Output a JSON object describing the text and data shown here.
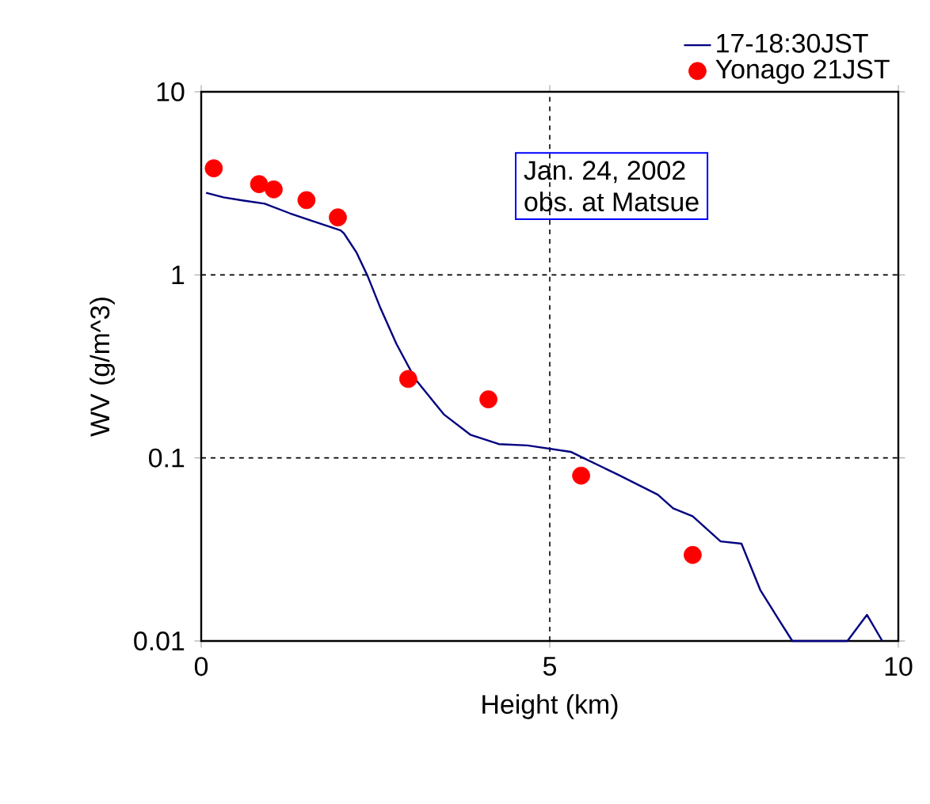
{
  "chart_data": {
    "type": "line",
    "xlabel": "Height (km)",
    "ylabel": "WV (g/m^3)",
    "xlim": [
      0,
      10
    ],
    "xticks": [
      0,
      5,
      10
    ],
    "ylim": [
      0.01,
      10
    ],
    "yticks": [
      0.01,
      0.1,
      1,
      10
    ],
    "log": "y",
    "grid": true,
    "legend": "top right",
    "annotations": [
      "Jan. 24, 2002",
      "obs. at Matsue"
    ],
    "series": [
      {
        "name": "17-18:30JST",
        "color": "#000080",
        "x": [
          0.07,
          0.32,
          0.59,
          0.91,
          1.27,
          1.59,
          2.0,
          2.05,
          2.23,
          2.39,
          2.57,
          2.8,
          3.07,
          3.48,
          3.86,
          4.27,
          4.68,
          5.3,
          5.48,
          5.98,
          6.55,
          6.77,
          7.05,
          7.45,
          7.75,
          8.02,
          8.3,
          8.48,
          9.27,
          9.55,
          9.77
        ],
        "values": [
          2.81,
          2.65,
          2.55,
          2.45,
          2.17,
          1.97,
          1.75,
          1.68,
          1.32,
          0.98,
          0.66,
          0.42,
          0.27,
          0.173,
          0.134,
          0.119,
          0.117,
          0.108,
          0.1,
          0.081,
          0.063,
          0.053,
          0.048,
          0.035,
          0.034,
          0.019,
          0.0128,
          0.01,
          0.01,
          0.0139,
          0.01
        ]
      },
      {
        "name": "Yonago 21JST",
        "type": "scatter",
        "marker": "circle",
        "color": "#ff0000",
        "x": [
          0.18,
          0.83,
          1.04,
          1.51,
          1.96,
          2.97,
          4.12,
          5.45,
          7.05
        ],
        "values": [
          3.82,
          3.13,
          2.93,
          2.56,
          2.06,
          0.27,
          0.209,
          0.08,
          0.0295
        ]
      }
    ]
  }
}
